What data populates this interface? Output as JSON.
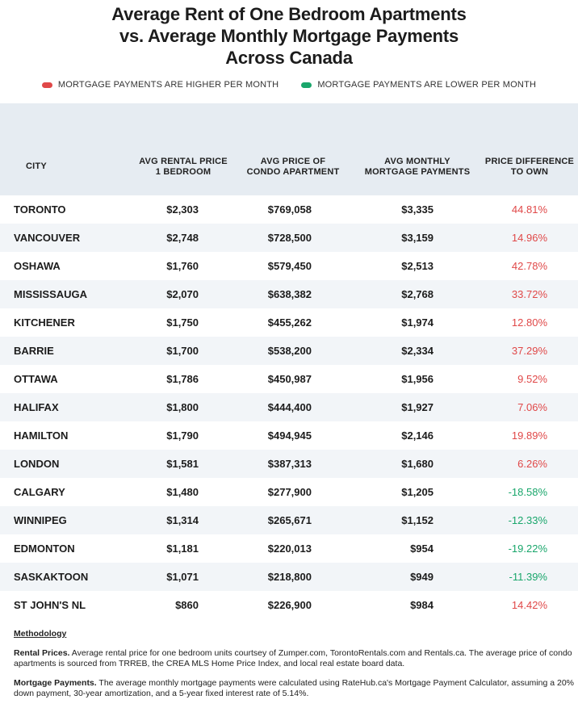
{
  "title_lines": [
    "Average Rent of One Bedroom Apartments",
    "vs. Average Monthly Mortgage Payments",
    "Across Canada"
  ],
  "legend": [
    {
      "label": "MORTGAGE PAYMENTS ARE HIGHER PER MONTH",
      "color": "#e04848"
    },
    {
      "label": "MORTGAGE PAYMENTS ARE LOWER PER MONTH",
      "color": "#19a66b"
    }
  ],
  "colors": {
    "header_bg": "#e6ecf2",
    "alt_row": "#f2f5f8",
    "positive": "#e04848",
    "negative": "#19a66b"
  },
  "chart_data": {
    "type": "table",
    "title": "Average Rent of One Bedroom Apartments vs. Average Monthly Mortgage Payments Across Canada",
    "columns": [
      [
        "CITY"
      ],
      [
        "AVG RENTAL PRICE",
        "1 BEDROOM"
      ],
      [
        "AVG PRICE OF",
        "CONDO APARTMENT"
      ],
      [
        "AVG MONTHLY",
        "MORTGAGE PAYMENTS"
      ],
      [
        "PRICE DIFFERENCE",
        "TO OWN"
      ]
    ],
    "rows": [
      [
        "TORONTO",
        "$2,303",
        "$769,058",
        "$3,335",
        "44.81%"
      ],
      [
        "VANCOUVER",
        "$2,748",
        "$728,500",
        "$3,159",
        "14.96%"
      ],
      [
        "OSHAWA",
        "$1,760",
        "$579,450",
        "$2,513",
        "42.78%"
      ],
      [
        "MISSISSAUGA",
        "$2,070",
        "$638,382",
        "$2,768",
        "33.72%"
      ],
      [
        "KITCHENER",
        "$1,750",
        "$455,262",
        "$1,974",
        "12.80%"
      ],
      [
        "BARRIE",
        "$1,700",
        "$538,200",
        "$2,334",
        "37.29%"
      ],
      [
        "OTTAWA",
        "$1,786",
        "$450,987",
        "$1,956",
        "9.52%"
      ],
      [
        "HALIFAX",
        "$1,800",
        "$444,400",
        "$1,927",
        "7.06%"
      ],
      [
        "HAMILTON",
        "$1,790",
        "$494,945",
        "$2,146",
        "19.89%"
      ],
      [
        "LONDON",
        "$1,581",
        "$387,313",
        "$1,680",
        "6.26%"
      ],
      [
        "CALGARY",
        "$1,480",
        "$277,900",
        "$1,205",
        "-18.58%"
      ],
      [
        "WINNIPEG",
        "$1,314",
        "$265,671",
        "$1,152",
        "-12.33%"
      ],
      [
        "EDMONTON",
        "$1,181",
        "$220,013",
        "$954",
        "-19.22%"
      ],
      [
        "SASKAKTOON",
        "$1,071",
        "$218,800",
        "$949",
        "-11.39%"
      ],
      [
        "ST JOHN'S NL",
        "$860",
        "$226,900",
        "$984",
        "14.42%"
      ]
    ]
  },
  "methodology": {
    "heading": "Methodology",
    "paragraphs": [
      {
        "label": "Rental Prices.",
        "text": " Average rental price for one bedroom units courtsey of Zumper.com, TorontoRentals.com and Rentals.ca. The average price of condo apartments is sourced from TRREB, the CREA MLS Home Price Index, and local real estate board data."
      },
      {
        "label": "Mortgage Payments.",
        "text": " The average monthly mortgage payments were calculated using RateHub.ca's Mortgage Payment Calculator, assuming a 20% down payment, 30-year amortization, and a 5-year fixed interest rate of 5.14%."
      }
    ]
  }
}
